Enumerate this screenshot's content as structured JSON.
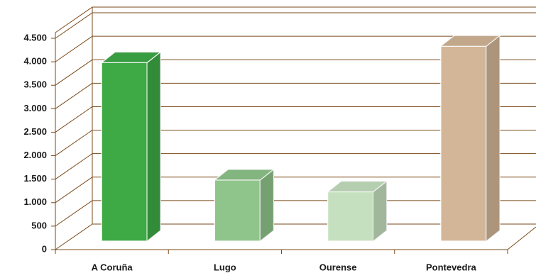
{
  "chart_data": {
    "type": "bar3d",
    "categories": [
      "A Coruña",
      "Lugo",
      "Ourense",
      "Pontevedra"
    ],
    "values": [
      3800,
      1300,
      1050,
      4150
    ],
    "colors": [
      "#3daa46",
      "#8fc58a",
      "#c5e0bf",
      "#d3b697"
    ],
    "ylim": [
      0,
      4500
    ],
    "yticks": [
      0,
      {
        "value": 500,
        "label": "500"
      },
      {
        "value": 1000,
        "label": "1.000"
      },
      {
        "value": 1500,
        "label": "1.500"
      },
      {
        "value": 2000,
        "label": "2.000"
      },
      {
        "value": 2500,
        "label": "2.500"
      },
      {
        "value": 3000,
        "label": "3.000"
      },
      {
        "value": 3500,
        "label": "3.500"
      },
      {
        "value": 4000,
        "label": "4.000"
      },
      {
        "value": 4500,
        "label": "4.500"
      }
    ],
    "grid": true
  }
}
